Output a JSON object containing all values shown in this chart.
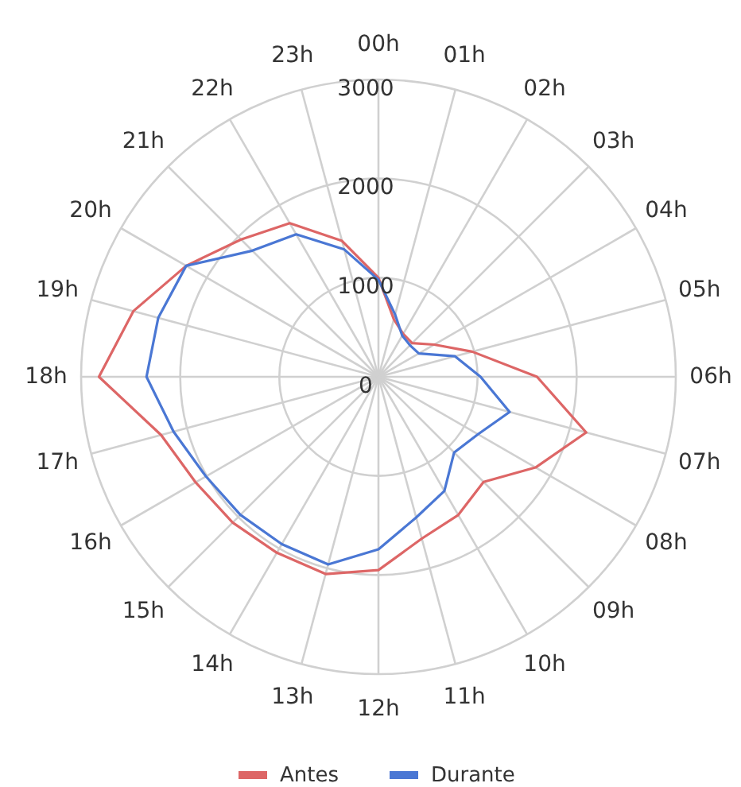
{
  "chart_data": {
    "type": "radar",
    "categories": [
      "00h",
      "01h",
      "02h",
      "03h",
      "04h",
      "05h",
      "06h",
      "07h",
      "08h",
      "09h",
      "10h",
      "11h",
      "12h",
      "13h",
      "14h",
      "15h",
      "16h",
      "17h",
      "18h",
      "19h",
      "20h",
      "21h",
      "22h",
      "23h"
    ],
    "series": [
      {
        "name": "Antes",
        "color": "#dd6666",
        "values": [
          1000,
          600,
          500,
          480,
          650,
          980,
          1600,
          2170,
          1830,
          1500,
          1610,
          1690,
          1950,
          2060,
          2050,
          2080,
          2130,
          2270,
          2820,
          2560,
          2240,
          1960,
          1790,
          1420
        ]
      },
      {
        "name": "Durante",
        "color": "#4a77d4",
        "values": [
          980,
          650,
          480,
          450,
          470,
          800,
          1030,
          1370,
          1160,
          1080,
          1330,
          1470,
          1740,
          1960,
          1950,
          1970,
          2010,
          2140,
          2340,
          2300,
          2240,
          1800,
          1660,
          1330
        ]
      }
    ],
    "ylim": [
      0,
      3000
    ],
    "yticks": [
      0,
      1000,
      2000,
      3000
    ],
    "grid": true,
    "legend": "bottom"
  }
}
